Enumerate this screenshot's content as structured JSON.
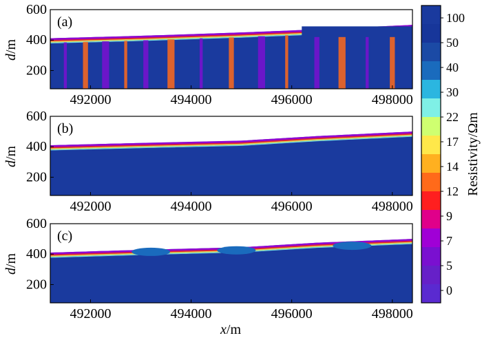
{
  "chart_data": [
    {
      "type": "heatmap",
      "panel_label": "(a)",
      "ylabel": "d",
      "ylabel_unit": "/m",
      "xlim": [
        491200,
        498400
      ],
      "ylim": [
        80,
        600
      ],
      "xticks": [
        492000,
        494000,
        496000,
        498000
      ],
      "yticks": [
        200,
        400,
        600
      ],
      "surface_elevation": [
        [
          491200,
          412
        ],
        [
          493000,
          428
        ],
        [
          495000,
          450
        ],
        [
          496500,
          470
        ],
        [
          498400,
          500
        ]
      ],
      "description_values": "Thin conductive (5-15 Ωm) layer near 380-420 m beneath surface; resistive blue block at top (496200-498400); vertical conductive streaks down to 80 m across the whole profile"
    },
    {
      "type": "heatmap",
      "panel_label": "(b)",
      "ylabel": "d",
      "ylabel_unit": "/m",
      "xlim": [
        491200,
        498400
      ],
      "ylim": [
        80,
        600
      ],
      "xticks": [
        492000,
        494000,
        496000,
        498000
      ],
      "yticks": [
        200,
        400,
        600
      ],
      "surface_elevation": [
        [
          491200,
          410
        ],
        [
          493000,
          425
        ],
        [
          495000,
          440
        ],
        [
          496500,
          470
        ],
        [
          498400,
          500
        ]
      ],
      "description_values": "Thin conductive layer near surface; resistive background (>100 Ωm) below ~370 m"
    },
    {
      "type": "heatmap",
      "panel_label": "(c)",
      "ylabel": "d",
      "ylabel_unit": "/m",
      "xlabel": "x",
      "xlabel_unit": "/m",
      "xlim": [
        491200,
        498400
      ],
      "ylim": [
        80,
        600
      ],
      "xticks": [
        492000,
        494000,
        496000,
        498000
      ],
      "yticks": [
        200,
        400,
        600
      ],
      "surface_elevation": [
        [
          491200,
          410
        ],
        [
          493000,
          428
        ],
        [
          495000,
          445
        ],
        [
          496500,
          475
        ],
        [
          498400,
          500
        ]
      ],
      "description_values": "Conductive layer 380-420 m with resistive lenses; resistive background below"
    }
  ],
  "colorbar": {
    "label": "Resistivity/Ωm",
    "ticks": [
      "100",
      "50",
      "40",
      "30",
      "22",
      "17",
      "14",
      "12",
      "9",
      "7",
      "5",
      "0"
    ],
    "colors": [
      "#1a3a9e",
      "#17369a",
      "#1b4aa5",
      "#1a6bbd",
      "#2bb6e0",
      "#7ff0e6",
      "#cfff70",
      "#ffe84a",
      "#ffb020",
      "#ff6a1a",
      "#ff1f1f",
      "#e0008a",
      "#a000d6",
      "#7a10d0",
      "#6620c8",
      "#5a2ad0"
    ]
  }
}
